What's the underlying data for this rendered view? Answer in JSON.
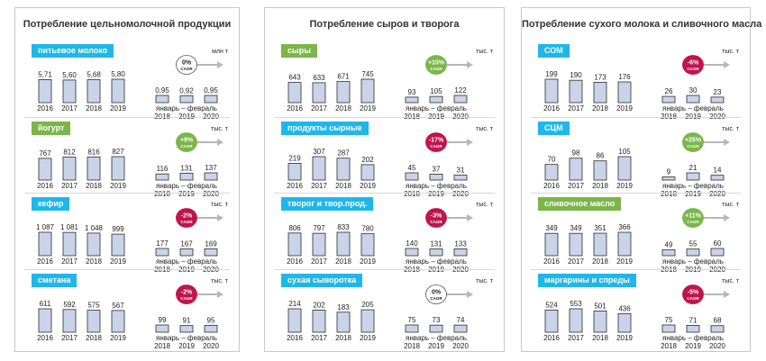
{
  "panels": [
    {
      "title": "Потребление цельномолочной продукции",
      "blocks": [
        {
          "label": "питьевое молоко",
          "label_color": "#1fb7ea",
          "unit": "млн т",
          "cagr": "0%",
          "cagr_style": "neutral",
          "annual_values": [
            "5,71",
            "5,60",
            "5,68",
            "5,80"
          ],
          "period_values": [
            "0,95",
            "0,92",
            "0,95"
          ]
        },
        {
          "label": "йогурт",
          "label_color": "#7ab648",
          "unit": "тыс. т",
          "cagr": "+9%",
          "cagr_style": "positive",
          "annual_values": [
            "767",
            "812",
            "816",
            "827"
          ],
          "period_values": [
            "116",
            "131",
            "137"
          ]
        },
        {
          "label": "кефир",
          "label_color": "#1fb7ea",
          "unit": "тыс. т",
          "cagr": "-2%",
          "cagr_style": "negative",
          "annual_values": [
            "1 087",
            "1 081",
            "1 048",
            "999"
          ],
          "period_values": [
            "177",
            "167",
            "169"
          ]
        },
        {
          "label": "сметана",
          "label_color": "#1fb7ea",
          "unit": "тыс. т",
          "cagr": "-2%",
          "cagr_style": "negative",
          "annual_values": [
            "611",
            "592",
            "575",
            "567"
          ],
          "period_values": [
            "99",
            "91",
            "95"
          ]
        }
      ]
    },
    {
      "title": "Потребление сыров и творога",
      "blocks": [
        {
          "label": "сыры",
          "label_color": "#7ab648",
          "unit": "тыс. т",
          "cagr": "+15%",
          "cagr_style": "positive",
          "annual_values": [
            "643",
            "633",
            "671",
            "745"
          ],
          "period_values": [
            "93",
            "105",
            "122"
          ]
        },
        {
          "label": "продукты сырные",
          "label_color": "#1fb7ea",
          "unit": "тыс. т",
          "cagr": "-17%",
          "cagr_style": "negative",
          "annual_values": [
            "219",
            "307",
            "287",
            "202"
          ],
          "period_values": [
            "45",
            "37",
            "31"
          ]
        },
        {
          "label": "творог и твор.прод.",
          "label_color": "#1fb7ea",
          "unit": "тыс. т",
          "cagr": "-3%",
          "cagr_style": "negative",
          "annual_values": [
            "806",
            "797",
            "833",
            "780"
          ],
          "period_values": [
            "140",
            "131",
            "133"
          ]
        },
        {
          "label": "сухая сыворотка",
          "label_color": "#1fb7ea",
          "unit": "тыс. т",
          "cagr": "0%",
          "cagr_style": "neutral",
          "annual_values": [
            "214",
            "202",
            "183",
            "205"
          ],
          "period_values": [
            "75",
            "73",
            "74"
          ]
        }
      ]
    },
    {
      "title": "Потребление сухого молока и сливочного масла",
      "blocks": [
        {
          "label": "СОМ",
          "label_color": "#1fb7ea",
          "unit": "тыс. т",
          "cagr": "-6%",
          "cagr_style": "negative",
          "annual_values": [
            "199",
            "190",
            "173",
            "176"
          ],
          "period_values": [
            "26",
            "30",
            "23"
          ]
        },
        {
          "label": "СЦМ",
          "label_color": "#1fb7ea",
          "unit": "тыс. т",
          "cagr": "+25%",
          "cagr_style": "positive",
          "annual_values": [
            "70",
            "98",
            "86",
            "105"
          ],
          "period_values": [
            "9",
            "21",
            "14"
          ]
        },
        {
          "label": "сливочное масло",
          "label_color": "#7ab648",
          "unit": "тыс. т",
          "cagr": "+11%",
          "cagr_style": "positive",
          "annual_values": [
            "349",
            "349",
            "351",
            "366"
          ],
          "period_values": [
            "49",
            "55",
            "60"
          ]
        },
        {
          "label": "маргарины и спреды",
          "label_color": "#1fb7ea",
          "unit": "тыс. т",
          "cagr": "-5%",
          "cagr_style": "negative",
          "annual_values": [
            "524",
            "553",
            "501",
            "436"
          ],
          "period_values": [
            "75",
            "71",
            "68"
          ]
        }
      ]
    }
  ],
  "common": {
    "annual_years": [
      "2016",
      "2017",
      "2018",
      "2019"
    ],
    "period_years": [
      "2018",
      "2019",
      "2020"
    ],
    "period_label": "январь – февраль",
    "cagr_word": "CAGR"
  },
  "colors": {
    "bar_fill": "#c9d4ea",
    "bar_stroke": "#2b2b2b",
    "positive": "#7ab648",
    "negative": "#c0144a",
    "neutral": "#ffffff",
    "arrow": "#b7b7b7"
  },
  "chart_data": [
    {
      "type": "bar",
      "title": "питьевое молоко",
      "ylabel": "млн т",
      "categories": [
        "2016",
        "2017",
        "2018",
        "2019",
        "2018 янв–фев",
        "2019 янв–фев",
        "2020 янв–фев"
      ],
      "values": [
        5.71,
        5.6,
        5.68,
        5.8,
        0.95,
        0.92,
        0.95
      ],
      "annotations": [
        "CAGR 0%"
      ]
    },
    {
      "type": "bar",
      "title": "йогурт",
      "ylabel": "тыс. т",
      "categories": [
        "2016",
        "2017",
        "2018",
        "2019",
        "2018 янв–фев",
        "2019 янв–фев",
        "2020 янв–фев"
      ],
      "values": [
        767,
        812,
        816,
        827,
        116,
        131,
        137
      ],
      "annotations": [
        "CAGR +9%"
      ]
    },
    {
      "type": "bar",
      "title": "кефир",
      "ylabel": "тыс. т",
      "categories": [
        "2016",
        "2017",
        "2018",
        "2019",
        "2018 янв–фев",
        "2019 янв–фев",
        "2020 янв–фев"
      ],
      "values": [
        1087,
        1081,
        1048,
        999,
        177,
        167,
        169
      ],
      "annotations": [
        "CAGR -2%"
      ]
    },
    {
      "type": "bar",
      "title": "сметана",
      "ylabel": "тыс. т",
      "categories": [
        "2016",
        "2017",
        "2018",
        "2019",
        "2018 янв–фев",
        "2019 янв–фев",
        "2020 янв–фев"
      ],
      "values": [
        611,
        592,
        575,
        567,
        99,
        91,
        95
      ],
      "annotations": [
        "CAGR -2%"
      ]
    },
    {
      "type": "bar",
      "title": "сыры",
      "ylabel": "тыс. т",
      "categories": [
        "2016",
        "2017",
        "2018",
        "2019",
        "2018 янв–фев",
        "2019 янв–фев",
        "2020 янв–фев"
      ],
      "values": [
        643,
        633,
        671,
        745,
        93,
        105,
        122
      ],
      "annotations": [
        "CAGR +15%"
      ]
    },
    {
      "type": "bar",
      "title": "продукты сырные",
      "ylabel": "тыс. т",
      "categories": [
        "2016",
        "2017",
        "2018",
        "2019",
        "2018 янв–фев",
        "2019 янв–фев",
        "2020 янв–фев"
      ],
      "values": [
        219,
        307,
        287,
        202,
        45,
        37,
        31
      ],
      "annotations": [
        "CAGR -17%"
      ]
    },
    {
      "type": "bar",
      "title": "творог и твор.прод.",
      "ylabel": "тыс. т",
      "categories": [
        "2016",
        "2017",
        "2018",
        "2019",
        "2018 янв–фев",
        "2019 янв–фев",
        "2020 янв–фев"
      ],
      "values": [
        806,
        797,
        833,
        780,
        140,
        131,
        133
      ],
      "annotations": [
        "CAGR -3%"
      ]
    },
    {
      "type": "bar",
      "title": "сухая сыворотка",
      "ylabel": "тыс. т",
      "categories": [
        "2016",
        "2017",
        "2018",
        "2019",
        "2018 янв–фев",
        "2019 янв–фев",
        "2020 янв–фев"
      ],
      "values": [
        214,
        202,
        183,
        205,
        75,
        73,
        74
      ],
      "annotations": [
        "CAGR 0%"
      ]
    },
    {
      "type": "bar",
      "title": "СОМ",
      "ylabel": "тыс. т",
      "categories": [
        "2016",
        "2017",
        "2018",
        "2019",
        "2018 янв–фев",
        "2019 янв–фев",
        "2020 янв–фев"
      ],
      "values": [
        199,
        190,
        173,
        176,
        26,
        30,
        23
      ],
      "annotations": [
        "CAGR -6%"
      ]
    },
    {
      "type": "bar",
      "title": "СЦМ",
      "ylabel": "тыс. т",
      "categories": [
        "2016",
        "2017",
        "2018",
        "2019",
        "2018 янв–фев",
        "2019 янв–фев",
        "2020 янв–фев"
      ],
      "values": [
        70,
        98,
        86,
        105,
        9,
        21,
        14
      ],
      "annotations": [
        "CAGR +25%"
      ]
    },
    {
      "type": "bar",
      "title": "сливочное масло",
      "ylabel": "тыс. т",
      "categories": [
        "2016",
        "2017",
        "2018",
        "2019",
        "2018 янв–фев",
        "2019 янв–фев",
        "2020 янв–фев"
      ],
      "values": [
        349,
        349,
        351,
        366,
        49,
        55,
        60
      ],
      "annotations": [
        "CAGR +11%"
      ]
    },
    {
      "type": "bar",
      "title": "маргарины и спреды",
      "ylabel": "тыс. т",
      "categories": [
        "2016",
        "2017",
        "2018",
        "2019",
        "2018 янв–фев",
        "2019 янв–фев",
        "2020 янв–фев"
      ],
      "values": [
        524,
        553,
        501,
        436,
        75,
        71,
        68
      ],
      "annotations": [
        "CAGR -5%"
      ]
    }
  ]
}
